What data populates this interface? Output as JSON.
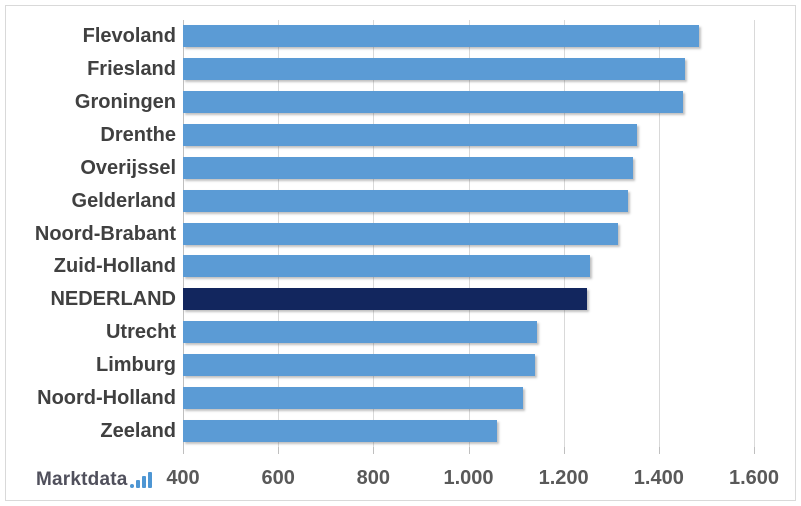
{
  "chart_data": {
    "type": "bar",
    "orientation": "horizontal",
    "title": "",
    "xlabel": "",
    "ylabel": "",
    "categories": [
      "Flevoland",
      "Friesland",
      "Groningen",
      "Drenthe",
      "Overijssel",
      "Gelderland",
      "Noord-Brabant",
      "Zuid-Holland",
      "NEDERLAND",
      "Utrecht",
      "Limburg",
      "Noord-Holland",
      "Zeeland"
    ],
    "values": [
      1485,
      1455,
      1450,
      1355,
      1345,
      1335,
      1315,
      1255,
      1250,
      1145,
      1140,
      1115,
      1060
    ],
    "highlight_category": "NEDERLAND",
    "xlim": [
      400,
      1600
    ],
    "x_ticks": [
      {
        "value": 400,
        "label": "400"
      },
      {
        "value": 600,
        "label": "600"
      },
      {
        "value": 800,
        "label": "800"
      },
      {
        "value": 1000,
        "label": "1.000"
      },
      {
        "value": 1200,
        "label": "1.200"
      },
      {
        "value": 1400,
        "label": "1.400"
      },
      {
        "value": 1600,
        "label": "1.600"
      }
    ],
    "grid": true,
    "legend": false,
    "colors": {
      "bar": "#5b9bd5",
      "bar_highlight": "#12265e",
      "gridline": "#d9d9d9",
      "axis_line": "#bfbfbf",
      "category_label": "#404040",
      "tick_label": "#595959"
    }
  },
  "branding": {
    "logo_text": "Marktdata",
    "logo_icon": "bar-chart-icon"
  }
}
